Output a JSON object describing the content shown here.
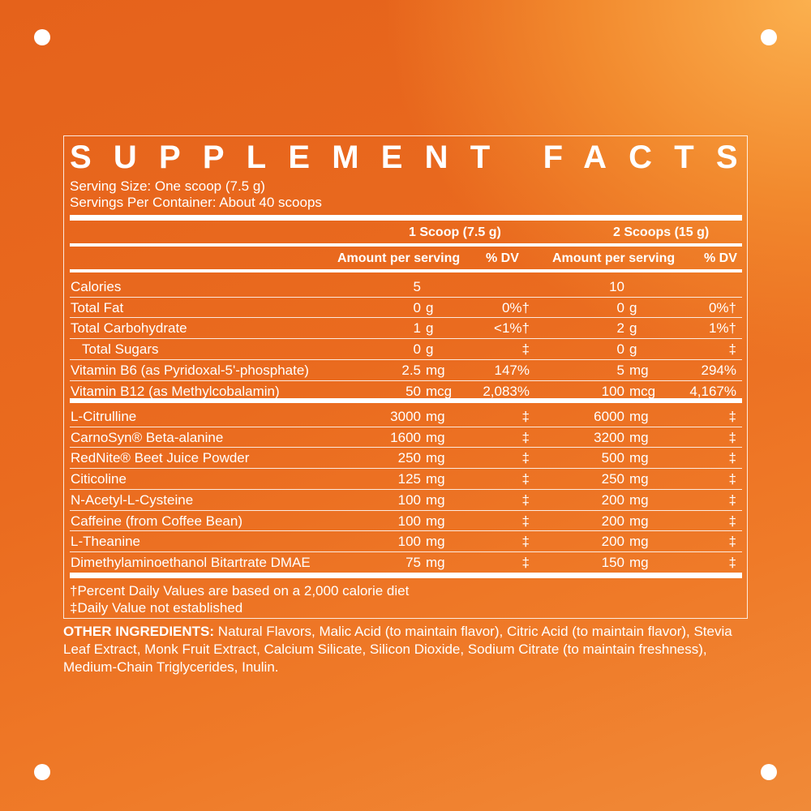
{
  "title": "SUPPLEMENT FACTS",
  "serving_size": "Serving Size: One scoop (7.5 g)",
  "servings_per_container": "Servings Per Container: About 40 scoops",
  "columns": {
    "serving1": "1 Scoop (7.5 g)",
    "serving2": "2 Scoops (15 g)",
    "amount_label": "Amount per serving",
    "dv_label": "% DV"
  },
  "nutrients": [
    {
      "name": "Calories",
      "amt1": "5",
      "unit1": "",
      "dv1": "",
      "amt2": "10",
      "unit2": "",
      "dv2": ""
    },
    {
      "name": "Total Fat",
      "amt1": "0",
      "unit1": "g",
      "dv1": "0%†",
      "amt2": "0",
      "unit2": "g",
      "dv2": "0%†"
    },
    {
      "name": "Total Carbohydrate",
      "amt1": "1",
      "unit1": "g",
      "dv1": "<1%†",
      "amt2": "2",
      "unit2": "g",
      "dv2": "1%†"
    },
    {
      "name": "Total Sugars",
      "indent": true,
      "amt1": "0",
      "unit1": "g",
      "dv1": "‡",
      "amt2": "0",
      "unit2": "g",
      "dv2": "‡"
    },
    {
      "name": "Vitamin B6 (as Pyridoxal-5'-phosphate)",
      "amt1": "2.5",
      "unit1": "mg",
      "dv1": "147%",
      "amt2": "5",
      "unit2": "mg",
      "dv2": "294%"
    },
    {
      "name": "Vitamin B12 (as Methylcobalamin)",
      "amt1": "50",
      "unit1": "mcg",
      "dv1": "2,083%",
      "amt2": "100",
      "unit2": "mcg",
      "dv2": "4,167%"
    }
  ],
  "ingredients": [
    {
      "name": "L-Citrulline",
      "amt1": "3000",
      "unit1": "mg",
      "dv1": "‡",
      "amt2": "6000",
      "unit2": "mg",
      "dv2": "‡"
    },
    {
      "name": "CarnoSyn® Beta-alanine",
      "amt1": "1600",
      "unit1": "mg",
      "dv1": "‡",
      "amt2": "3200",
      "unit2": "mg",
      "dv2": "‡"
    },
    {
      "name": "RedNite® Beet Juice Powder",
      "amt1": "250",
      "unit1": "mg",
      "dv1": "‡",
      "amt2": "500",
      "unit2": "mg",
      "dv2": "‡"
    },
    {
      "name": "Citicoline",
      "amt1": "125",
      "unit1": "mg",
      "dv1": "‡",
      "amt2": "250",
      "unit2": "mg",
      "dv2": "‡"
    },
    {
      "name": "N-Acetyl-L-Cysteine",
      "amt1": "100",
      "unit1": "mg",
      "dv1": "‡",
      "amt2": "200",
      "unit2": "mg",
      "dv2": "‡"
    },
    {
      "name": "Caffeine (from Coffee Bean)",
      "amt1": "100",
      "unit1": "mg",
      "dv1": "‡",
      "amt2": "200",
      "unit2": "mg",
      "dv2": "‡"
    },
    {
      "name": "L-Theanine",
      "amt1": "100",
      "unit1": "mg",
      "dv1": "‡",
      "amt2": "200",
      "unit2": "mg",
      "dv2": "‡"
    },
    {
      "name": "Dimethylaminoethanol Bitartrate DMAE",
      "amt1": "75",
      "unit1": "mg",
      "dv1": "‡",
      "amt2": "150",
      "unit2": "mg",
      "dv2": "‡"
    }
  ],
  "footnotes": [
    "†Percent Daily Values are based on a 2,000 calorie diet",
    "‡Daily Value not established"
  ],
  "other_ingredients": {
    "label": "OTHER INGREDIENTS:",
    "text": " Natural Flavors, Malic Acid (to maintain flavor), Citric Acid (to maintain flavor), Stevia Leaf Extract, Monk Fruit Extract, Calcium Silicate, Silicon Dioxide, Sodium Citrate (to maintain freshness), Medium-Chain Triglycerides, Inulin."
  },
  "colors": {
    "background": "#ea6b1f",
    "highlight": "#fbb04e",
    "text": "#ffffff"
  }
}
